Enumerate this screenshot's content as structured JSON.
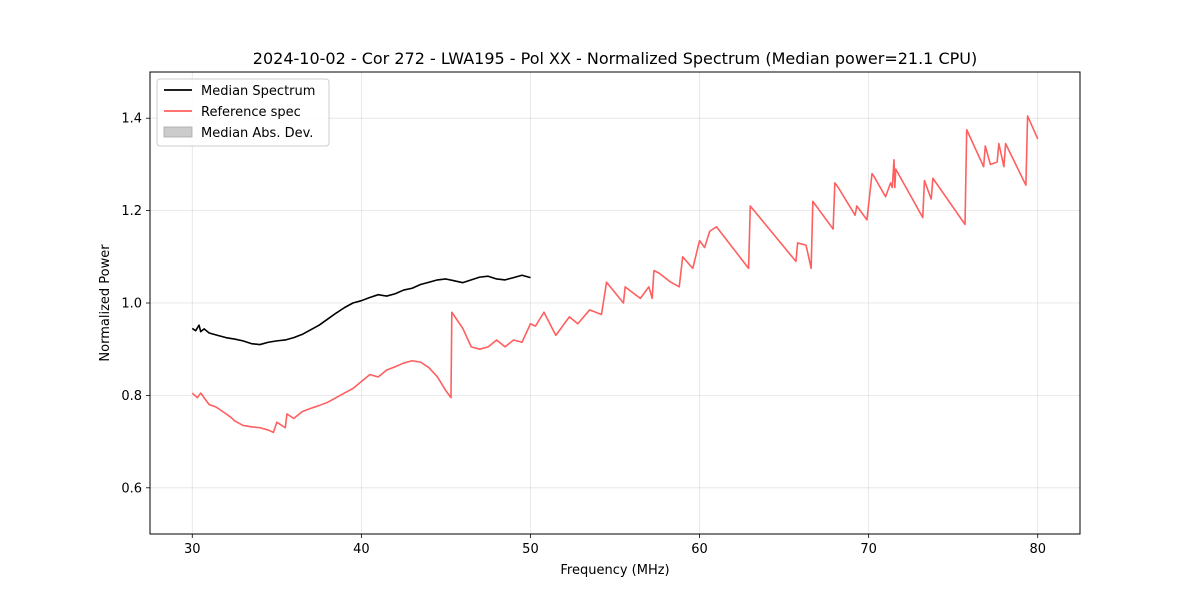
{
  "chart_data": {
    "type": "line",
    "title": "2024-10-02 - Cor 272 - LWA195 - Pol XX - Normalized Spectrum (Median power=21.1 CPU)",
    "xlabel": "Frequency (MHz)",
    "ylabel": "Normalized Power",
    "xlim": [
      27.5,
      82.5
    ],
    "ylim": [
      0.5,
      1.5
    ],
    "xticks": [
      30,
      40,
      50,
      60,
      70,
      80
    ],
    "yticks": [
      0.6,
      0.8,
      1.0,
      1.2,
      1.4
    ],
    "xtick_labels": [
      "30",
      "40",
      "50",
      "60",
      "70",
      "80"
    ],
    "ytick_labels": [
      "0.6",
      "0.8",
      "1.0",
      "1.2",
      "1.4"
    ],
    "grid": true,
    "legend_position": "top-left",
    "legend": [
      {
        "label": "Median Spectrum",
        "color": "#000000",
        "kind": "line"
      },
      {
        "label": "Reference spec",
        "color": "#ff5f5f",
        "kind": "line"
      },
      {
        "label": "Median Abs. Dev.",
        "color": "#cccccc",
        "kind": "patch"
      }
    ],
    "series": [
      {
        "name": "Median Spectrum",
        "color": "#000000",
        "x": [
          30.0,
          30.2,
          30.4,
          30.5,
          30.7,
          31.0,
          31.5,
          32.0,
          32.5,
          33.0,
          33.5,
          34.0,
          34.5,
          35.0,
          35.5,
          36.0,
          36.5,
          37.0,
          37.5,
          38.0,
          38.5,
          39.0,
          39.5,
          40.0,
          40.5,
          41.0,
          41.5,
          42.0,
          42.5,
          43.0,
          43.5,
          44.0,
          44.5,
          45.0,
          45.5,
          46.0,
          46.5,
          47.0,
          47.5,
          48.0,
          48.5,
          49.0,
          49.5,
          50.0
        ],
        "y": [
          0.945,
          0.94,
          0.952,
          0.938,
          0.944,
          0.935,
          0.93,
          0.925,
          0.922,
          0.918,
          0.912,
          0.91,
          0.915,
          0.918,
          0.92,
          0.925,
          0.932,
          0.942,
          0.952,
          0.965,
          0.978,
          0.99,
          1.0,
          1.005,
          1.012,
          1.018,
          1.015,
          1.02,
          1.028,
          1.032,
          1.04,
          1.045,
          1.05,
          1.052,
          1.048,
          1.044,
          1.05,
          1.056,
          1.058,
          1.052,
          1.05,
          1.055,
          1.06,
          1.055
        ]
      },
      {
        "name": "Reference spec",
        "color": "#ff5f5f",
        "x": [
          30.0,
          30.3,
          30.5,
          30.8,
          31.0,
          31.4,
          31.6,
          32.0,
          32.3,
          32.5,
          33.0,
          33.5,
          34.0,
          34.5,
          34.8,
          35.0,
          35.5,
          35.6,
          36.0,
          36.5,
          37.0,
          37.5,
          38.0,
          38.5,
          39.0,
          39.5,
          40.0,
          40.5,
          41.0,
          41.5,
          42.0,
          42.5,
          43.0,
          43.5,
          44.0,
          44.5,
          45.0,
          45.3,
          45.35,
          46.0,
          46.5,
          47.0,
          47.5,
          48.0,
          48.5,
          49.0,
          49.5,
          50.0,
          50.3,
          50.8,
          51.5,
          52.3,
          52.8,
          53.5,
          54.2,
          54.5,
          55.5,
          55.6,
          56.5,
          57.0,
          57.2,
          57.3,
          57.6,
          58.3,
          58.8,
          59.0,
          59.6,
          60.0,
          60.3,
          60.6,
          61.0,
          62.9,
          63.0,
          65.7,
          65.8,
          66.3,
          66.6,
          66.7,
          67.9,
          68.0,
          68.2,
          69.2,
          69.3,
          69.9,
          70.2,
          70.3,
          71.0,
          71.3,
          71.4,
          71.5,
          71.55,
          71.6,
          73.2,
          73.3,
          73.7,
          73.8,
          75.7,
          75.8,
          76.8,
          76.9,
          77.2,
          77.6,
          77.7,
          78.0,
          78.1,
          79.3,
          79.4,
          80.0
        ],
        "y": [
          0.805,
          0.795,
          0.805,
          0.79,
          0.78,
          0.775,
          0.77,
          0.76,
          0.752,
          0.745,
          0.735,
          0.732,
          0.73,
          0.725,
          0.72,
          0.742,
          0.73,
          0.76,
          0.75,
          0.765,
          0.772,
          0.778,
          0.785,
          0.795,
          0.805,
          0.815,
          0.83,
          0.845,
          0.84,
          0.855,
          0.862,
          0.87,
          0.875,
          0.872,
          0.86,
          0.84,
          0.81,
          0.795,
          0.98,
          0.945,
          0.905,
          0.9,
          0.905,
          0.92,
          0.905,
          0.92,
          0.915,
          0.955,
          0.95,
          0.98,
          0.93,
          0.97,
          0.955,
          0.985,
          0.975,
          1.045,
          1.0,
          1.035,
          1.01,
          1.035,
          1.01,
          1.07,
          1.065,
          1.045,
          1.035,
          1.1,
          1.075,
          1.135,
          1.12,
          1.155,
          1.165,
          1.075,
          1.21,
          1.09,
          1.13,
          1.125,
          1.075,
          1.22,
          1.16,
          1.26,
          1.25,
          1.19,
          1.21,
          1.18,
          1.28,
          1.275,
          1.23,
          1.26,
          1.25,
          1.31,
          1.25,
          1.29,
          1.185,
          1.265,
          1.225,
          1.27,
          1.17,
          1.375,
          1.295,
          1.34,
          1.3,
          1.305,
          1.345,
          1.295,
          1.345,
          1.255,
          1.405,
          1.355
        ]
      }
    ]
  }
}
